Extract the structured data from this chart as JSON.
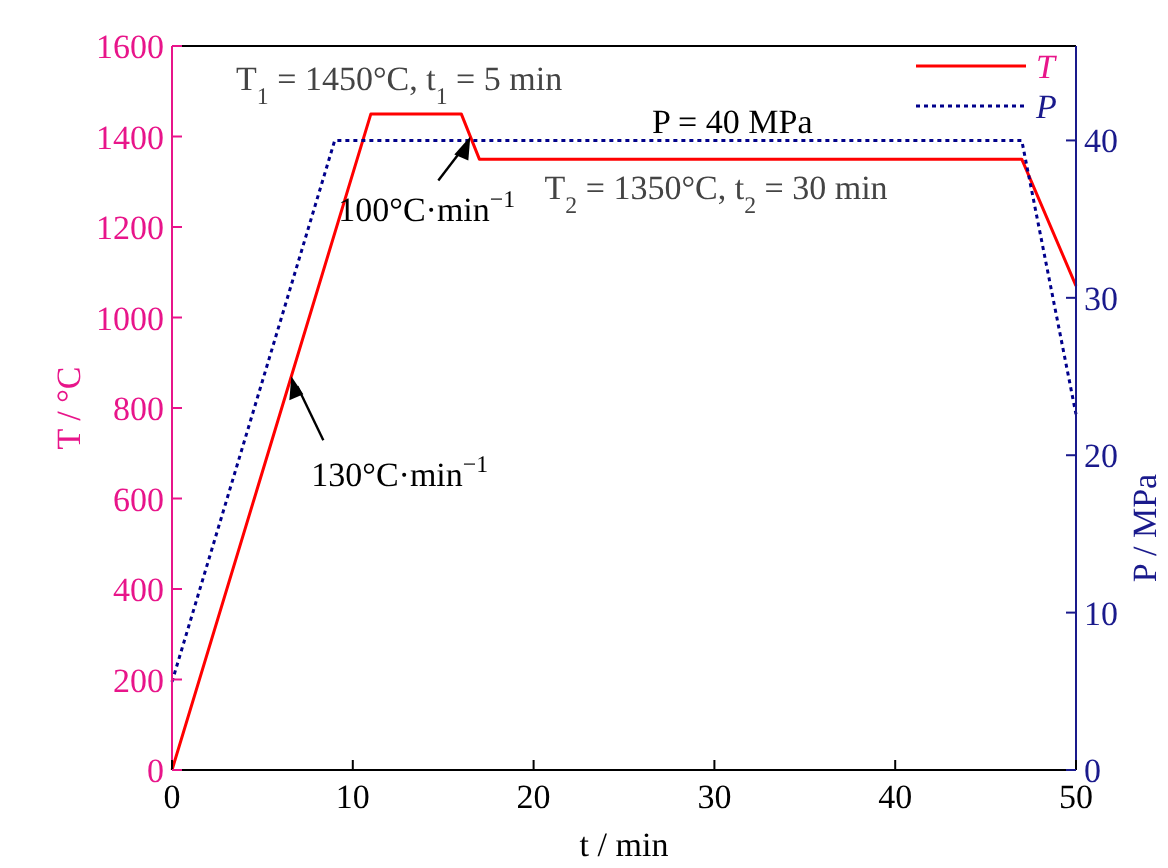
{
  "chart_data": {
    "type": "line",
    "xlabel": "t / min",
    "ylabel": "T / °C",
    "y2label": "P / MPa",
    "xlim": [
      0,
      50
    ],
    "xticks": [
      0,
      10,
      20,
      30,
      40,
      50
    ],
    "ylim": [
      0,
      1600
    ],
    "yticks": [
      0,
      200,
      400,
      600,
      800,
      1000,
      1200,
      1400,
      1600
    ],
    "y2lim": [
      0,
      46
    ],
    "y2ticks": [
      0,
      10,
      20,
      30,
      40
    ],
    "legend": "top right",
    "grid": false,
    "series": [
      {
        "name": "T",
        "color": "#ff0000",
        "line_style": "solid",
        "x": [
          0,
          11,
          16,
          17,
          47,
          50
        ],
        "values": [
          0,
          1450,
          1450,
          1350,
          1350,
          1070
        ]
      },
      {
        "name": "P",
        "color": "#00008b",
        "line_style": "dotted",
        "axis": "y2",
        "x": [
          0,
          9,
          47,
          50
        ],
        "values": [
          5.6,
          40,
          40,
          22.6
        ]
      }
    ],
    "annotations": [
      {
        "text": "T$_{1}$ = 1450°C, t$_{1}$ = 5 min",
        "x": 13.5,
        "y": 1450
      },
      {
        "text": "P = 40 MPa",
        "x": 28,
        "y": 1400
      },
      {
        "text": "T$_{2}$ = 1350°C, t$_{2}$ = 30 min",
        "x": 32,
        "y": 1350
      },
      {
        "text": "100°C·min$^{−1}$",
        "x": 16.5,
        "y": 1400
      },
      {
        "text": "130°C·min$^{−1}$",
        "x": 6.6,
        "y": 870
      }
    ]
  }
}
